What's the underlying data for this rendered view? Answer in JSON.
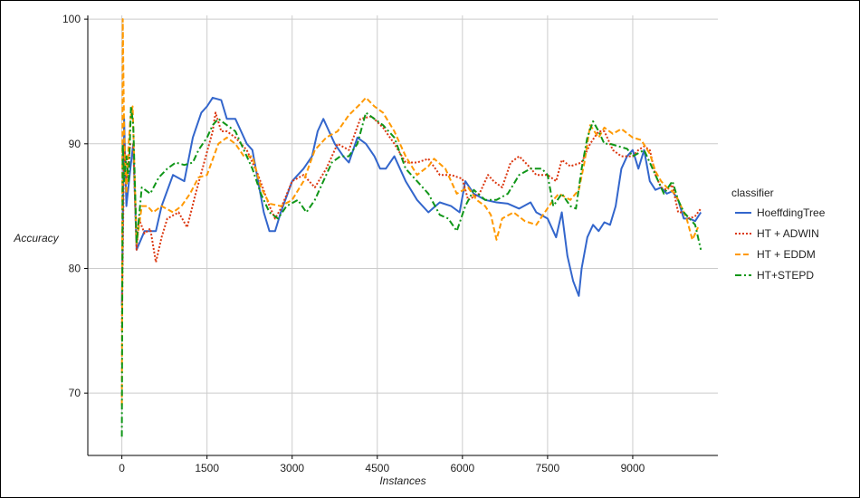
{
  "chart_data": {
    "type": "line",
    "xlabel": "Instances",
    "ylabel": "Accuracy",
    "xlim": [
      -600,
      10500
    ],
    "ylim": [
      65,
      100.3
    ],
    "xticks": [
      0,
      1500,
      3000,
      4500,
      6000,
      7500,
      9000
    ],
    "yticks": [
      70,
      80,
      90,
      100
    ],
    "grid": true,
    "legend": {
      "title": "classifier",
      "position": "right"
    },
    "series": [
      {
        "name": "HoeffdingTree",
        "color": "#3366cc",
        "dash": "solid",
        "points": [
          [
            0,
            77
          ],
          [
            40,
            92
          ],
          [
            80,
            85
          ],
          [
            150,
            88
          ],
          [
            200,
            90
          ],
          [
            260,
            81.5
          ],
          [
            400,
            83
          ],
          [
            600,
            83
          ],
          [
            700,
            85
          ],
          [
            900,
            87.5
          ],
          [
            1100,
            87
          ],
          [
            1250,
            90.5
          ],
          [
            1400,
            92.5
          ],
          [
            1500,
            93
          ],
          [
            1600,
            93.7
          ],
          [
            1750,
            93.5
          ],
          [
            1850,
            92
          ],
          [
            2000,
            92
          ],
          [
            2100,
            91
          ],
          [
            2200,
            90
          ],
          [
            2300,
            89.5
          ],
          [
            2400,
            87
          ],
          [
            2500,
            84.5
          ],
          [
            2600,
            83
          ],
          [
            2700,
            83
          ],
          [
            2800,
            84.5
          ],
          [
            3000,
            87
          ],
          [
            3200,
            88
          ],
          [
            3350,
            89
          ],
          [
            3450,
            91
          ],
          [
            3550,
            92
          ],
          [
            3650,
            91
          ],
          [
            3750,
            90
          ],
          [
            3900,
            89
          ],
          [
            4000,
            88.5
          ],
          [
            4150,
            90.5
          ],
          [
            4300,
            90
          ],
          [
            4450,
            89
          ],
          [
            4550,
            88
          ],
          [
            4650,
            88
          ],
          [
            4800,
            89
          ],
          [
            5000,
            87
          ],
          [
            5200,
            85.5
          ],
          [
            5400,
            84.5
          ],
          [
            5600,
            85.3
          ],
          [
            5800,
            85
          ],
          [
            5950,
            84.5
          ],
          [
            6050,
            87
          ],
          [
            6200,
            86
          ],
          [
            6400,
            85.5
          ],
          [
            6600,
            85.3
          ],
          [
            6800,
            85.2
          ],
          [
            7000,
            84.8
          ],
          [
            7200,
            85.3
          ],
          [
            7300,
            84.5
          ],
          [
            7500,
            84
          ],
          [
            7650,
            82.5
          ],
          [
            7750,
            84.5
          ],
          [
            7850,
            81
          ],
          [
            7950,
            79
          ],
          [
            8050,
            77.8
          ],
          [
            8100,
            80
          ],
          [
            8200,
            82.5
          ],
          [
            8300,
            83.5
          ],
          [
            8400,
            83
          ],
          [
            8500,
            83.7
          ],
          [
            8600,
            83.5
          ],
          [
            8700,
            85
          ],
          [
            8800,
            88
          ],
          [
            8900,
            89
          ],
          [
            9000,
            89.5
          ],
          [
            9100,
            88
          ],
          [
            9200,
            89.5
          ],
          [
            9300,
            87
          ],
          [
            9400,
            86.3
          ],
          [
            9500,
            86.5
          ],
          [
            9600,
            86
          ],
          [
            9700,
            86.2
          ],
          [
            9800,
            85.5
          ],
          [
            9900,
            84
          ],
          [
            10000,
            84
          ],
          [
            10100,
            83.8
          ],
          [
            10200,
            84.5
          ]
        ]
      },
      {
        "name": "HT + ADWIN",
        "color": "#dc3912",
        "dash": "dotted",
        "points": [
          [
            0,
            75
          ],
          [
            40,
            90
          ],
          [
            80,
            87
          ],
          [
            150,
            90
          ],
          [
            200,
            90
          ],
          [
            260,
            81.5
          ],
          [
            300,
            84
          ],
          [
            400,
            82.8
          ],
          [
            500,
            83.2
          ],
          [
            600,
            80.5
          ],
          [
            700,
            82.5
          ],
          [
            800,
            84
          ],
          [
            1000,
            84.5
          ],
          [
            1150,
            83.3
          ],
          [
            1300,
            86
          ],
          [
            1450,
            88.5
          ],
          [
            1600,
            91
          ],
          [
            1650,
            92.5
          ],
          [
            1750,
            91
          ],
          [
            1850,
            91
          ],
          [
            2000,
            90.5
          ],
          [
            2200,
            89.5
          ],
          [
            2400,
            87.5
          ],
          [
            2600,
            85
          ],
          [
            2700,
            84
          ],
          [
            2800,
            84.8
          ],
          [
            3000,
            87
          ],
          [
            3200,
            87.5
          ],
          [
            3400,
            86.5
          ],
          [
            3600,
            88
          ],
          [
            3800,
            90
          ],
          [
            4000,
            89.5
          ],
          [
            4200,
            92
          ],
          [
            4400,
            92.2
          ],
          [
            4600,
            91.3
          ],
          [
            4800,
            90
          ],
          [
            5000,
            88.5
          ],
          [
            5200,
            88.5
          ],
          [
            5400,
            88.8
          ],
          [
            5600,
            87.5
          ],
          [
            5800,
            87.5
          ],
          [
            6000,
            87.2
          ],
          [
            6100,
            85.5
          ],
          [
            6300,
            86
          ],
          [
            6450,
            87.5
          ],
          [
            6550,
            87
          ],
          [
            6700,
            86.5
          ],
          [
            6850,
            88.5
          ],
          [
            7000,
            89
          ],
          [
            7150,
            88.3
          ],
          [
            7300,
            87.5
          ],
          [
            7500,
            87.5
          ],
          [
            7650,
            87
          ],
          [
            7750,
            88.7
          ],
          [
            7900,
            88.2
          ],
          [
            8100,
            88.5
          ],
          [
            8250,
            90
          ],
          [
            8400,
            91
          ],
          [
            8500,
            91
          ],
          [
            8650,
            89.5
          ],
          [
            8800,
            89
          ],
          [
            9000,
            89
          ],
          [
            9100,
            89.5
          ],
          [
            9200,
            89.8
          ],
          [
            9300,
            89.5
          ],
          [
            9400,
            87.5
          ],
          [
            9500,
            86.5
          ],
          [
            9600,
            86.3
          ],
          [
            9700,
            86.7
          ],
          [
            9800,
            84.5
          ],
          [
            9900,
            84.5
          ],
          [
            10000,
            84
          ],
          [
            10100,
            84.2
          ],
          [
            10200,
            84.8
          ]
        ]
      },
      {
        "name": "HT + EDDM",
        "color": "#ff9900",
        "dash": "dashed",
        "points": [
          [
            0,
            69
          ],
          [
            15,
            100
          ],
          [
            40,
            91
          ],
          [
            80,
            86
          ],
          [
            120,
            90
          ],
          [
            150,
            92
          ],
          [
            190,
            93
          ],
          [
            260,
            82
          ],
          [
            350,
            85
          ],
          [
            450,
            85
          ],
          [
            550,
            84.5
          ],
          [
            700,
            85
          ],
          [
            900,
            84.5
          ],
          [
            1050,
            85
          ],
          [
            1200,
            86
          ],
          [
            1350,
            87.3
          ],
          [
            1500,
            87.5
          ],
          [
            1700,
            90
          ],
          [
            1850,
            90.5
          ],
          [
            2000,
            90
          ],
          [
            2150,
            89
          ],
          [
            2300,
            89
          ],
          [
            2450,
            86.5
          ],
          [
            2600,
            85.2
          ],
          [
            2800,
            85
          ],
          [
            3000,
            85.5
          ],
          [
            3200,
            87
          ],
          [
            3400,
            89.5
          ],
          [
            3600,
            90.5
          ],
          [
            3800,
            91
          ],
          [
            4000,
            92.3
          ],
          [
            4200,
            93.2
          ],
          [
            4300,
            93.7
          ],
          [
            4450,
            93
          ],
          [
            4600,
            92.5
          ],
          [
            4800,
            91
          ],
          [
            5000,
            89
          ],
          [
            5200,
            87.5
          ],
          [
            5400,
            88.2
          ],
          [
            5500,
            88.8
          ],
          [
            5700,
            88
          ],
          [
            5900,
            86
          ],
          [
            6100,
            86.5
          ],
          [
            6250,
            85.5
          ],
          [
            6400,
            85
          ],
          [
            6500,
            84.3
          ],
          [
            6600,
            82.3
          ],
          [
            6700,
            84
          ],
          [
            6900,
            84.5
          ],
          [
            7100,
            83.8
          ],
          [
            7300,
            83.5
          ],
          [
            7450,
            84.5
          ],
          [
            7600,
            85.5
          ],
          [
            7700,
            86
          ],
          [
            7900,
            85.5
          ],
          [
            8050,
            86.3
          ],
          [
            8150,
            88.5
          ],
          [
            8250,
            91.5
          ],
          [
            8400,
            90.5
          ],
          [
            8500,
            91.3
          ],
          [
            8650,
            90.8
          ],
          [
            8800,
            91.2
          ],
          [
            9000,
            90.5
          ],
          [
            9150,
            90.3
          ],
          [
            9300,
            89.2
          ],
          [
            9400,
            87.8
          ],
          [
            9500,
            87
          ],
          [
            9600,
            86.5
          ],
          [
            9750,
            86
          ],
          [
            9850,
            85
          ],
          [
            9950,
            84
          ],
          [
            10050,
            82.3
          ],
          [
            10150,
            83.3
          ]
        ]
      },
      {
        "name": "HT+STEPD",
        "color": "#109618",
        "dash": "longdash",
        "points": [
          [
            0,
            66.5
          ],
          [
            15,
            90
          ],
          [
            40,
            87
          ],
          [
            80,
            89
          ],
          [
            120,
            87
          ],
          [
            160,
            93
          ],
          [
            200,
            91.5
          ],
          [
            260,
            82
          ],
          [
            350,
            86.5
          ],
          [
            500,
            86
          ],
          [
            650,
            87.3
          ],
          [
            800,
            88
          ],
          [
            950,
            88.5
          ],
          [
            1100,
            88.3
          ],
          [
            1250,
            88.5
          ],
          [
            1350,
            89.5
          ],
          [
            1500,
            90.5
          ],
          [
            1600,
            91.5
          ],
          [
            1700,
            92
          ],
          [
            1850,
            91.5
          ],
          [
            2000,
            91
          ],
          [
            2150,
            89.5
          ],
          [
            2300,
            88
          ],
          [
            2450,
            86
          ],
          [
            2600,
            84.5
          ],
          [
            2750,
            84
          ],
          [
            2900,
            85
          ],
          [
            3100,
            85.5
          ],
          [
            3250,
            84.5
          ],
          [
            3400,
            85.5
          ],
          [
            3550,
            87
          ],
          [
            3700,
            88.5
          ],
          [
            3850,
            89
          ],
          [
            4000,
            89
          ],
          [
            4150,
            90
          ],
          [
            4300,
            92.5
          ],
          [
            4450,
            92
          ],
          [
            4600,
            91.5
          ],
          [
            4800,
            90.5
          ],
          [
            5000,
            88
          ],
          [
            5200,
            87
          ],
          [
            5400,
            86
          ],
          [
            5600,
            84.3
          ],
          [
            5750,
            84
          ],
          [
            5900,
            83
          ],
          [
            6050,
            85
          ],
          [
            6200,
            86.3
          ],
          [
            6400,
            85.5
          ],
          [
            6600,
            85.5
          ],
          [
            6800,
            86
          ],
          [
            7000,
            87.5
          ],
          [
            7200,
            88
          ],
          [
            7400,
            88
          ],
          [
            7500,
            87.5
          ],
          [
            7600,
            85
          ],
          [
            7750,
            86
          ],
          [
            7900,
            85
          ],
          [
            8000,
            84.8
          ],
          [
            8100,
            88
          ],
          [
            8200,
            90.5
          ],
          [
            8300,
            91.8
          ],
          [
            8400,
            91
          ],
          [
            8500,
            90
          ],
          [
            8600,
            90
          ],
          [
            8750,
            89.8
          ],
          [
            8900,
            89.6
          ],
          [
            9000,
            89
          ],
          [
            9200,
            89.5
          ],
          [
            9300,
            88.5
          ],
          [
            9400,
            87.5
          ],
          [
            9550,
            86
          ],
          [
            9700,
            87
          ],
          [
            9800,
            85.5
          ],
          [
            9900,
            84.5
          ],
          [
            10000,
            84
          ],
          [
            10100,
            83.5
          ],
          [
            10200,
            81.5
          ]
        ]
      }
    ]
  }
}
